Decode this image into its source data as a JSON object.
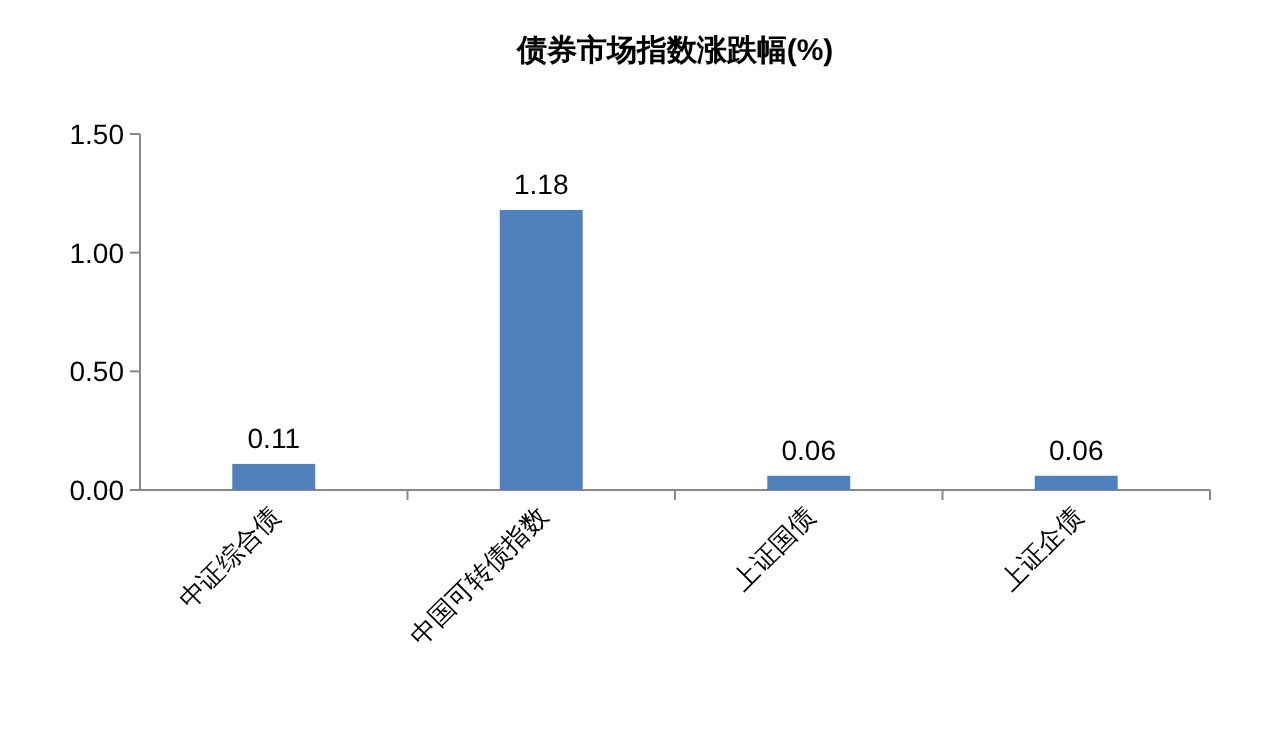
{
  "chart_data": {
    "type": "bar",
    "title": "债券市场指数涨跌幅(%)",
    "categories": [
      "中证综合债",
      "中国可转债指数",
      "上证国债",
      "上证企债"
    ],
    "values": [
      0.11,
      1.18,
      0.06,
      0.06
    ],
    "color": "#4f81bd",
    "ylim": [
      0,
      1.5
    ],
    "yticks": [
      {
        "value": 0,
        "label": "0.00"
      },
      {
        "value": 0.5,
        "label": "0.50"
      },
      {
        "value": 1,
        "label": "1.00"
      },
      {
        "value": 1.5,
        "label": "1.50"
      }
    ],
    "data_labels": true
  }
}
